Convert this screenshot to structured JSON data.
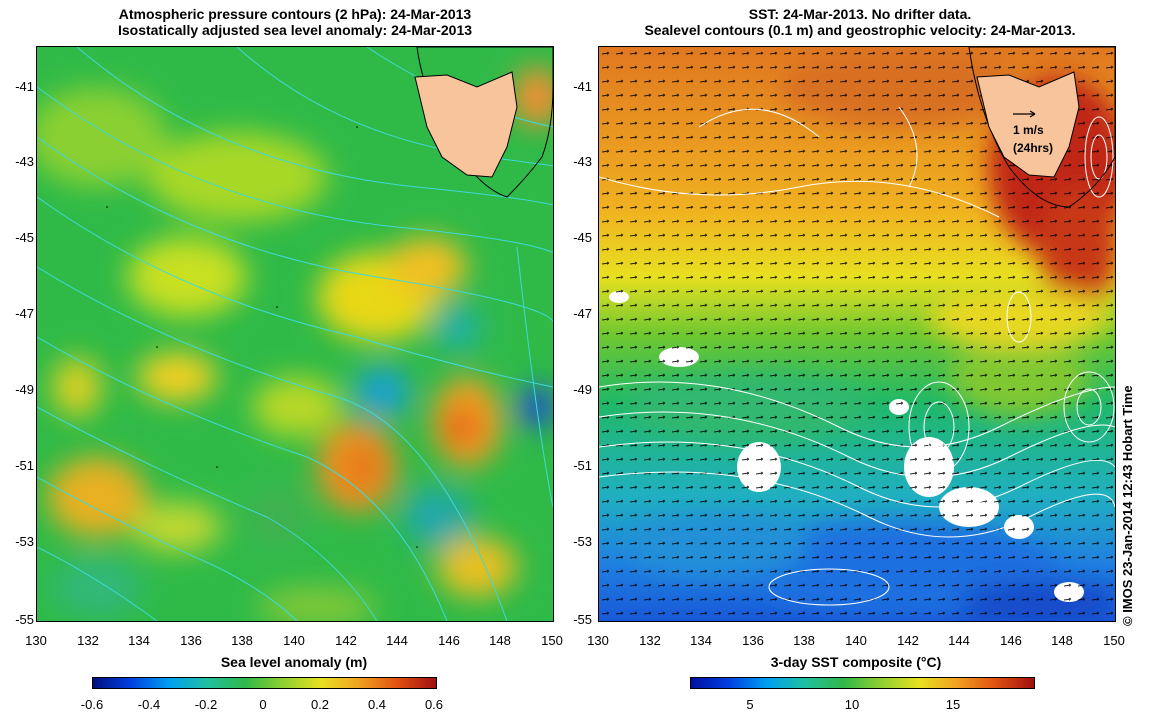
{
  "left_panel": {
    "title_line1": "Atmospheric pressure contours (2 hPa): 24-Mar-2013",
    "title_line2": "Isostatically adjusted sea level anomaly: 24-Mar-2013",
    "x_ticks": [
      "130",
      "132",
      "134",
      "136",
      "138",
      "140",
      "142",
      "144",
      "146",
      "148",
      "150"
    ],
    "y_ticks": [
      "-41",
      "-43",
      "-45",
      "-47",
      "-49",
      "-51",
      "-53",
      "-55"
    ],
    "colorbar_label": "Sea level anomaly (m)",
    "colorbar_ticks": [
      "-0.6",
      "-0.4",
      "-0.2",
      "0",
      "0.2",
      "0.4",
      "0.6"
    ]
  },
  "right_panel": {
    "title_line1": "SST: 24-Mar-2013. No drifter data.",
    "title_line2": "Sealevel contours (0.1 m) and geostrophic velocity: 24-Mar-2013.",
    "x_ticks": [
      "130",
      "132",
      "134",
      "136",
      "138",
      "140",
      "142",
      "144",
      "146",
      "148",
      "150"
    ],
    "y_ticks": [
      "-41",
      "-43",
      "-45",
      "-47",
      "-49",
      "-51",
      "-53",
      "-55"
    ],
    "colorbar_label": "3-day SST composite (°C)",
    "colorbar_ticks": [
      "5",
      "10",
      "15"
    ],
    "velocity_key_line1": "1 m/s",
    "velocity_key_line2": "(24hrs)"
  },
  "credit": "© IMOS 23-Jan-2014 12:43 Hobart Time",
  "colors": {
    "ocean_green": "#2db84a",
    "land": "#f8c49c",
    "contour_cyan": "#40d8d8",
    "sst_warm": "#c0281c",
    "sst_cool": "#1e70e0"
  }
}
